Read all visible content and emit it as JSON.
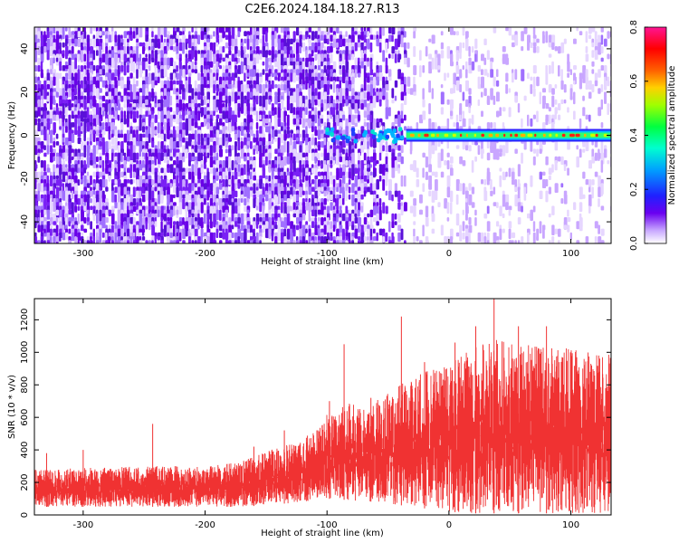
{
  "title": "C2E6.2024.184.18.27.R13",
  "colors": {
    "series": "#f03232",
    "spectrogram_palette": [
      "#ffffff",
      "#e8d8ff",
      "#b080ff",
      "#6a00f0",
      "#3030ff",
      "#00c8ff",
      "#00ff80",
      "#c0ff00",
      "#ff8000",
      "#ff0000",
      "#ff1080"
    ]
  },
  "chart_data": [
    {
      "type": "heatmap",
      "xlabel": "Height of straight line (km)",
      "ylabel": "Frequency (Hz)",
      "xlim": [
        -340,
        133
      ],
      "ylim": [
        -50,
        50
      ],
      "xticks": [
        -300,
        -200,
        -100,
        0,
        100
      ],
      "yticks": [
        -40,
        -20,
        0,
        20,
        40
      ],
      "colorbar": {
        "label": "Normalized spectral amplitude",
        "range": [
          0.0,
          0.8
        ],
        "ticks": [
          "0.0",
          "0.2",
          "0.4",
          "0.6",
          "0.8"
        ]
      },
      "features": [
        {
          "description_key": "broadband_noise",
          "x_range": [
            -340,
            -80
          ],
          "amplitude": 0.05
        },
        {
          "description_key": "noise_fading",
          "x_range": [
            -80,
            -35
          ],
          "amplitude": 0.03
        },
        {
          "description_key": "blobs",
          "x_range": [
            -100,
            -35
          ],
          "freq": 0,
          "amplitude": 0.3
        },
        {
          "description_key": "tone",
          "x_range": [
            -35,
            133
          ],
          "freq": 0,
          "amplitude": 0.75
        }
      ]
    },
    {
      "type": "line",
      "xlabel": "Height of straight line (km)",
      "ylabel": "SNR (10 * v/v)",
      "xlim": [
        -340,
        133
      ],
      "ylim": [
        0,
        1330
      ],
      "xticks": [
        -300,
        -200,
        -100,
        0,
        100
      ],
      "yticks": [
        0,
        200,
        400,
        600,
        800,
        1000,
        1200
      ],
      "envelope": {
        "x": [
          -340,
          -300,
          -250,
          -200,
          -170,
          -150,
          -120,
          -100,
          -80,
          -60,
          -40,
          -20,
          0,
          20,
          40,
          60,
          80,
          100,
          133
        ],
        "low": [
          50,
          50,
          50,
          50,
          50,
          60,
          80,
          100,
          90,
          80,
          60,
          40,
          20,
          10,
          10,
          10,
          10,
          10,
          10
        ],
        "high": [
          280,
          290,
          300,
          300,
          330,
          390,
          460,
          620,
          690,
          700,
          800,
          880,
          920,
          1050,
          1080,
          1050,
          1050,
          1020,
          1000
        ],
        "spikes": [
          [
            -330,
            380
          ],
          [
            -300,
            400
          ],
          [
            -243,
            560
          ],
          [
            -160,
            420
          ],
          [
            -135,
            520
          ],
          [
            -98,
            700
          ],
          [
            -86,
            1050
          ],
          [
            -64,
            720
          ],
          [
            -39,
            1220
          ],
          [
            -20,
            940
          ],
          [
            5,
            1060
          ],
          [
            22,
            1160
          ],
          [
            37,
            1330
          ],
          [
            57,
            1160
          ],
          [
            80,
            1160
          ]
        ]
      }
    }
  ]
}
